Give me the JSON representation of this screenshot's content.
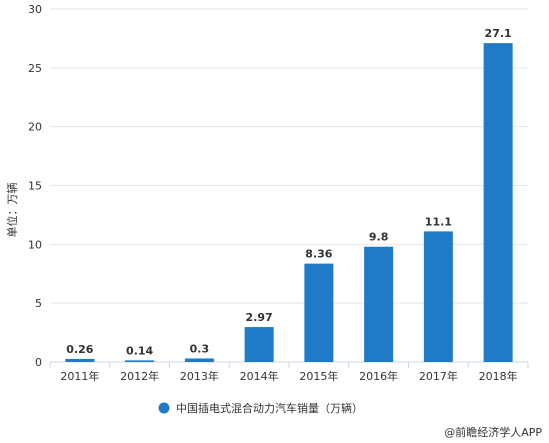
{
  "chart_data": {
    "type": "bar",
    "categories": [
      "2011年",
      "2012年",
      "2013年",
      "2014年",
      "2015年",
      "2016年",
      "2017年",
      "2018年"
    ],
    "series": [
      {
        "name": "中国插电式混合动力汽车销量（万辆）",
        "values": [
          0.26,
          0.14,
          0.3,
          2.97,
          8.36,
          9.8,
          11.1,
          27.1
        ],
        "color": "#1f7bc6"
      }
    ],
    "data_labels": [
      "0.26",
      "0.14",
      "0.3",
      "2.97",
      "8.36",
      "9.8",
      "11.1",
      "27.1"
    ],
    "ylabel": "单位：万辆",
    "ylim": [
      0,
      30
    ],
    "yticks": [
      0,
      5,
      10,
      15,
      20,
      25,
      30
    ],
    "grid": true,
    "legend_position": "bottom"
  },
  "footer": {
    "source": "@前瞻经济学人APP"
  }
}
